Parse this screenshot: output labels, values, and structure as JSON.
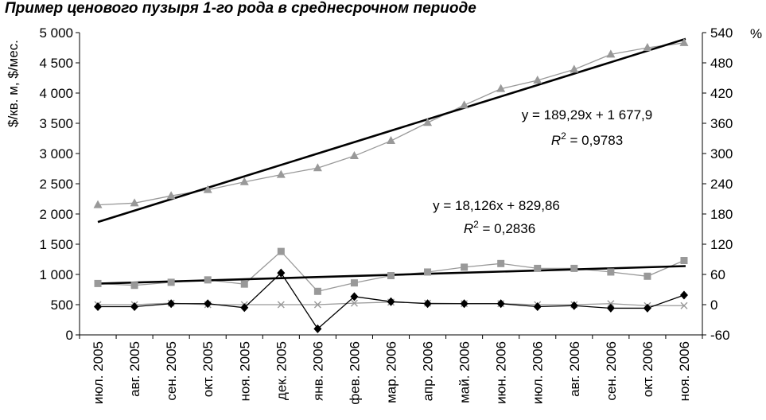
{
  "chart_data": {
    "type": "line",
    "title": "Пример ценового пузыря 1-го рода в среднесрочном периоде",
    "ylabel": "$/кв. м, $/мес.",
    "y2label": "%",
    "categories": [
      "июл. 2005",
      "авг. 2005",
      "сен. 2005",
      "окт. 2005",
      "ноя. 2005",
      "дек. 2005",
      "янв. 2006",
      "фев. 2006",
      "мар. 2006",
      "апр. 2006",
      "май. 2006",
      "июн. 2006",
      "июл. 2006",
      "авг. 2006",
      "сен. 2006",
      "окт. 2006",
      "ноя. 2006"
    ],
    "ylim": [
      0,
      5000
    ],
    "y_ticks": [
      "0",
      "500",
      "1 000",
      "1 500",
      "2 000",
      "2 500",
      "3 000",
      "3 500",
      "4 000",
      "4 500",
      "5 000"
    ],
    "y2lim": [
      -60,
      540
    ],
    "y2_ticks": [
      "-60",
      "0",
      "60",
      "120",
      "180",
      "240",
      "300",
      "360",
      "420",
      "480",
      "540"
    ],
    "grid": false,
    "legend": "none",
    "series": [
      {
        "axis": "left",
        "marker": "triangle",
        "color": "#999999",
        "values": [
          2150,
          2180,
          2300,
          2400,
          2530,
          2650,
          2760,
          2960,
          3210,
          3510,
          3800,
          4070,
          4210,
          4390,
          4640,
          4750,
          4830
        ]
      },
      {
        "axis": "left",
        "marker": "square",
        "color": "#999999",
        "values": [
          850,
          820,
          870,
          910,
          840,
          1380,
          720,
          860,
          980,
          1040,
          1120,
          1180,
          1100,
          1100,
          1040,
          970,
          1230
        ]
      },
      {
        "axis": "right",
        "marker": "x",
        "color": "#999999",
        "values": [
          0,
          0,
          3,
          0,
          0,
          0,
          0,
          3,
          5,
          3,
          2,
          2,
          0,
          0,
          2,
          -2,
          -2
        ]
      },
      {
        "axis": "right",
        "marker": "diamond",
        "color": "#000000",
        "values": [
          -4,
          -4,
          2,
          2,
          -6,
          63,
          -48,
          16,
          6,
          2,
          2,
          2,
          -4,
          -2,
          -7,
          -7,
          19
        ]
      }
    ],
    "trendlines": [
      {
        "axis": "left",
        "slope": 189.29,
        "intercept": 1677.9,
        "equation": "y = 189,29x + 1 677,9",
        "r2": "R2 = 0,9783",
        "r2_prefix": "R",
        "r2_sup": "2",
        "r2_value": " = 0,9783"
      },
      {
        "axis": "left",
        "slope": 18.126,
        "intercept": 829.86,
        "equation": "y = 18,126x + 829,86",
        "r2": "R2 = 0,2836",
        "r2_prefix": "R",
        "r2_sup": "2",
        "r2_value": " = 0,2836"
      }
    ]
  }
}
